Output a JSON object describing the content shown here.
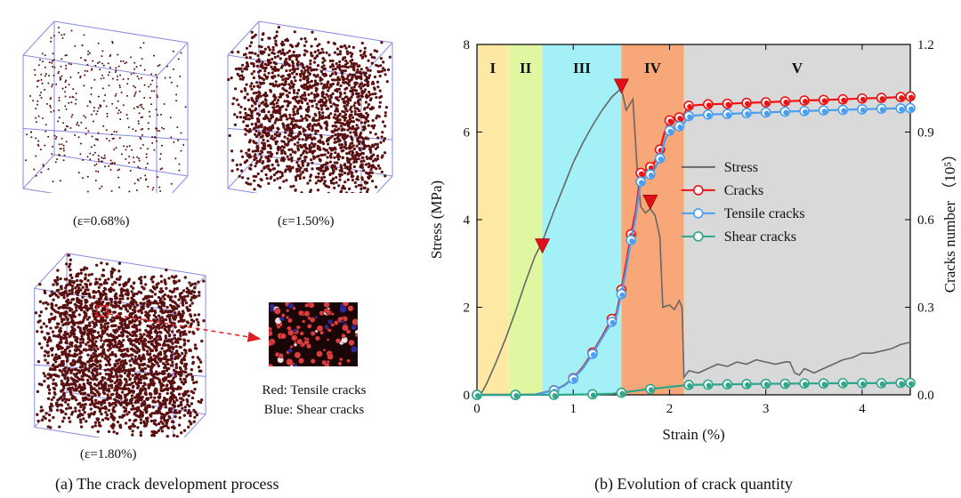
{
  "panel_a": {
    "snapshots": [
      {
        "strain_label": "(ε=0.68%)",
        "density": 0.18
      },
      {
        "strain_label": "(ε=1.50%)",
        "density": 0.7
      },
      {
        "strain_label": "(ε=1.80%)",
        "density": 1.0
      }
    ],
    "legend_red": "Red: Tensile cracks",
    "legend_blue": "Blue: Shear cracks",
    "caption": "(a) The crack development process",
    "colors": {
      "crack": "#5a1010",
      "box": "#8a8ae0",
      "tensile": "#d94040",
      "shear": "#2a2aa0",
      "arrow": "#e02020"
    }
  },
  "panel_b": {
    "caption": "(b) Evolution of crack quantity"
  },
  "chart_data": {
    "type": "line",
    "xlabel": "Strain (%)",
    "ylabel": "Stress (MPa)",
    "y2label": "Cracks number （10⁵）",
    "xlim": [
      0,
      4.5
    ],
    "ylim": [
      0,
      8
    ],
    "y2lim": [
      0,
      1.2
    ],
    "xticks": [
      0,
      1,
      2,
      3,
      4
    ],
    "yticks": [
      0,
      2,
      4,
      6,
      8
    ],
    "y2ticks": [
      "0.0",
      "0.3",
      "0.6",
      "0.9",
      "1.2"
    ],
    "stages": [
      {
        "label": "I",
        "x0": 0,
        "x1": 0.33,
        "color": "#fde9a4"
      },
      {
        "label": "II",
        "x0": 0.33,
        "x1": 0.68,
        "color": "#dff7a0"
      },
      {
        "label": "III",
        "x0": 0.68,
        "x1": 1.5,
        "color": "#a3f1f6"
      },
      {
        "label": "IV",
        "x0": 1.5,
        "x1": 2.15,
        "color": "#f8a878"
      },
      {
        "label": "V",
        "x0": 2.15,
        "x1": 4.5,
        "color": "#d9d9d9"
      }
    ],
    "markers": [
      {
        "x": 0.68,
        "y": 3.4
      },
      {
        "x": 1.5,
        "y": 7.05
      },
      {
        "x": 1.8,
        "y": 4.4
      }
    ],
    "legend_position": "center-right",
    "series": [
      {
        "name": "Stress",
        "axis": "left",
        "color": "#666666",
        "marker": false,
        "x": [
          0,
          0.05,
          0.1,
          0.2,
          0.3,
          0.4,
          0.5,
          0.6,
          0.68,
          0.8,
          0.9,
          1.0,
          1.1,
          1.2,
          1.3,
          1.4,
          1.5,
          1.55,
          1.62,
          1.66,
          1.7,
          1.75,
          1.8,
          1.85,
          1.9,
          1.93,
          2.0,
          2.05,
          2.1,
          2.13,
          2.15,
          2.2,
          2.3,
          2.4,
          2.5,
          2.6,
          2.7,
          2.8,
          2.9,
          3.0,
          3.1,
          3.2,
          3.25,
          3.3,
          3.35,
          3.4,
          3.5,
          3.6,
          3.7,
          3.8,
          3.9,
          4.0,
          4.1,
          4.2,
          4.3,
          4.4,
          4.5
        ],
        "y": [
          0,
          0.05,
          0.25,
          0.75,
          1.3,
          1.9,
          2.55,
          3.15,
          3.5,
          4.2,
          4.75,
          5.3,
          5.75,
          6.15,
          6.5,
          6.8,
          7.0,
          6.5,
          6.75,
          5.3,
          4.3,
          4.15,
          4.25,
          4.1,
          3.6,
          2.0,
          2.05,
          1.95,
          2.15,
          2.0,
          0.4,
          0.55,
          0.5,
          0.6,
          0.7,
          0.65,
          0.75,
          0.7,
          0.8,
          0.75,
          0.7,
          0.75,
          0.75,
          0.5,
          0.45,
          0.6,
          0.5,
          0.6,
          0.7,
          0.8,
          0.85,
          0.95,
          0.95,
          1.0,
          1.05,
          1.15,
          1.2
        ]
      },
      {
        "name": "Cracks",
        "axis": "right",
        "color": "#ee1111",
        "marker": true,
        "x": [
          0,
          0.2,
          0.4,
          0.6,
          0.8,
          0.9,
          1.0,
          1.1,
          1.2,
          1.3,
          1.4,
          1.45,
          1.5,
          1.55,
          1.6,
          1.65,
          1.7,
          1.75,
          1.8,
          1.85,
          1.9,
          1.95,
          2.0,
          2.05,
          2.1,
          2.15,
          2.2,
          2.4,
          2.6,
          2.8,
          3.0,
          3.2,
          3.4,
          3.6,
          3.8,
          4.0,
          4.2,
          4.4,
          4.5
        ],
        "y": [
          0,
          0,
          0,
          0.001,
          0.016,
          0.031,
          0.057,
          0.095,
          0.145,
          0.2,
          0.26,
          0.28,
          0.36,
          0.45,
          0.55,
          0.63,
          0.76,
          0.77,
          0.78,
          0.8,
          0.84,
          0.9,
          0.94,
          0.95,
          0.95,
          0.96,
          0.99,
          0.995,
          0.997,
          1.0,
          1.002,
          1.005,
          1.008,
          1.01,
          1.012,
          1.015,
          1.017,
          1.02,
          1.022
        ]
      },
      {
        "name": "Tensile cracks",
        "axis": "right",
        "color": "#4a9ef0",
        "marker": true,
        "x": [
          0,
          0.2,
          0.4,
          0.6,
          0.8,
          0.9,
          1.0,
          1.1,
          1.2,
          1.3,
          1.4,
          1.45,
          1.5,
          1.55,
          1.6,
          1.65,
          1.7,
          1.75,
          1.8,
          1.85,
          1.9,
          1.95,
          2.0,
          2.05,
          2.1,
          2.15,
          2.2,
          2.4,
          2.6,
          2.8,
          3.0,
          3.2,
          3.4,
          3.6,
          3.8,
          4.0,
          4.2,
          4.4,
          4.5
        ],
        "y": [
          0,
          0,
          0,
          0.001,
          0.015,
          0.03,
          0.055,
          0.09,
          0.14,
          0.195,
          0.25,
          0.27,
          0.345,
          0.43,
          0.53,
          0.61,
          0.73,
          0.745,
          0.755,
          0.775,
          0.81,
          0.87,
          0.905,
          0.915,
          0.92,
          0.93,
          0.955,
          0.96,
          0.962,
          0.965,
          0.967,
          0.97,
          0.972,
          0.974,
          0.976,
          0.978,
          0.98,
          0.981,
          0.982
        ]
      },
      {
        "name": "Shear cracks",
        "axis": "right",
        "color": "#2fa58a",
        "marker": true,
        "x": [
          0,
          0.2,
          0.4,
          0.6,
          0.8,
          1.0,
          1.2,
          1.4,
          1.5,
          1.6,
          1.8,
          2.0,
          2.2,
          2.4,
          2.6,
          2.8,
          3.0,
          3.2,
          3.4,
          3.6,
          3.8,
          4.0,
          4.2,
          4.4,
          4.5
        ],
        "y": [
          0,
          0,
          0,
          0,
          0,
          0.001,
          0.002,
          0.004,
          0.007,
          0.012,
          0.02,
          0.027,
          0.034,
          0.035,
          0.036,
          0.037,
          0.038,
          0.038,
          0.039,
          0.039,
          0.04,
          0.04,
          0.04,
          0.041,
          0.041
        ]
      }
    ]
  }
}
